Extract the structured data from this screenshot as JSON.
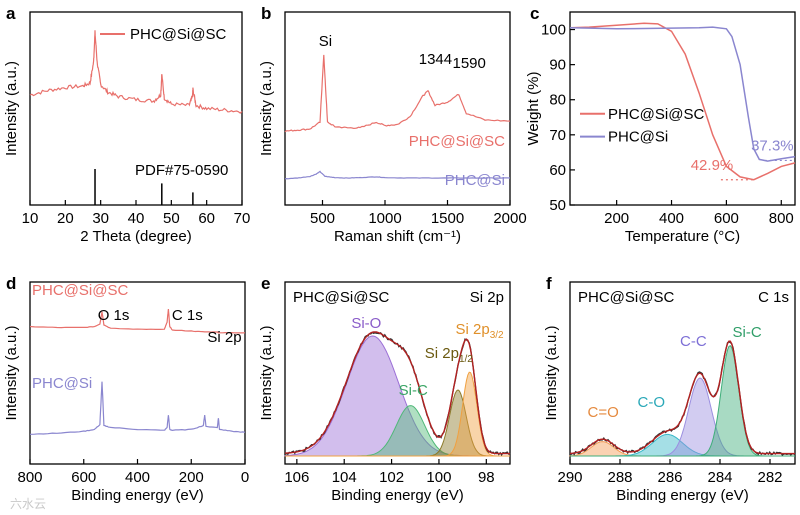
{
  "colors": {
    "red": "#e8706b",
    "purple": "#8a86cf",
    "black": "#000000"
  },
  "watermark": "六水云",
  "panels": {
    "a": {
      "letter": "a",
      "xlabel": "2 Theta (degree)",
      "ylabel": "Intensity (a.u.)",
      "xticks": [
        "10",
        "20",
        "30",
        "40",
        "50",
        "60",
        "70"
      ],
      "legend": "PHC@Si@SC",
      "reference": "PDF#75-0590"
    },
    "b": {
      "letter": "b",
      "xlabel": "Raman shift (cm⁻¹)",
      "ylabel": "Intensity (a.u.)",
      "xticks": [
        "500",
        "1000",
        "1500",
        "2000"
      ],
      "peak_si": "Si",
      "peak_1344": "1344",
      "peak_1590": "1590",
      "label_top": "PHC@Si@SC",
      "label_bottom": "PHC@Si"
    },
    "c": {
      "letter": "c",
      "xlabel": "Temperature (°C)",
      "ylabel": "Weight (%)",
      "xticks": [
        "200",
        "400",
        "600",
        "800"
      ],
      "yticks": [
        "50",
        "60",
        "70",
        "80",
        "90",
        "100"
      ],
      "legend_1": "PHC@Si@SC",
      "legend_2": "PHC@Si",
      "annot_red": "42.9%",
      "annot_purple": "37.3%"
    },
    "d": {
      "letter": "d",
      "xlabel": "Binding energy (eV)",
      "ylabel": "Intensity (a.u.)",
      "xticks": [
        "800",
        "600",
        "400",
        "200",
        "0"
      ],
      "label_top": "PHC@Si@SC",
      "label_bottom": "PHC@Si",
      "peak_o1s": "O 1s",
      "peak_c1s": "C 1s",
      "peak_si2p": "Si 2p"
    },
    "e": {
      "letter": "e",
      "xlabel": "Binding energy (eV)",
      "ylabel": "Intensity (a.u.)",
      "xticks": [
        "106",
        "104",
        "102",
        "100",
        "98"
      ],
      "sample": "PHC@Si@SC",
      "region": "Si 2p",
      "comp_sio": "Si-O",
      "comp_sic": "Si-C",
      "comp_2p12": "Si 2p",
      "comp_2p12_sub": "1/2",
      "comp_2p32": "Si 2p",
      "comp_2p32_sub": "3/2"
    },
    "f": {
      "letter": "f",
      "xlabel": "Binding energy (eV)",
      "ylabel": "Intensity (a.u.)",
      "xticks": [
        "290",
        "288",
        "286",
        "284",
        "282"
      ],
      "sample": "PHC@Si@SC",
      "region": "C 1s",
      "comp_co_double": "C=O",
      "comp_co": "C-O",
      "comp_cc": "C-C",
      "comp_sic": "Si-C"
    }
  },
  "chart_data": [
    {
      "type": "line",
      "title": "",
      "xlabel": "2 Theta (degree)",
      "ylabel": "Intensity (a.u.)",
      "xlim": [
        10,
        70
      ],
      "series": [
        {
          "name": "PHC@Si@SC",
          "x": [
            10,
            15,
            20,
            25,
            27,
            28,
            28.4,
            29,
            30,
            32,
            35,
            40,
            45,
            47,
            47.3,
            48,
            50,
            55,
            56,
            56.1,
            57,
            60,
            65,
            70
          ],
          "y": [
            0.58,
            0.61,
            0.63,
            0.64,
            0.66,
            0.8,
            1.0,
            0.8,
            0.65,
            0.6,
            0.57,
            0.55,
            0.54,
            0.58,
            0.72,
            0.56,
            0.52,
            0.51,
            0.57,
            0.62,
            0.51,
            0.49,
            0.48,
            0.47
          ]
        }
      ],
      "reference_lines": {
        "label": "PDF#75-0590",
        "x": [
          28.4,
          47.3,
          56.1
        ],
        "height": [
          1.0,
          0.6,
          0.35
        ]
      }
    },
    {
      "type": "line",
      "title": "",
      "xlabel": "Raman shift (cm⁻¹)",
      "ylabel": "Intensity (a.u.)",
      "xlim": [
        200,
        2000
      ],
      "series": [
        {
          "name": "PHC@Si@SC",
          "x": [
            200,
            300,
            400,
            480,
            510,
            540,
            600,
            700,
            800,
            930,
            1000,
            1100,
            1200,
            1300,
            1344,
            1400,
            1500,
            1590,
            1650,
            1800,
            2000
          ],
          "y": [
            0.32,
            0.33,
            0.34,
            0.4,
            1.0,
            0.4,
            0.36,
            0.35,
            0.35,
            0.4,
            0.37,
            0.38,
            0.45,
            0.63,
            0.68,
            0.55,
            0.58,
            0.65,
            0.48,
            0.42,
            0.41
          ]
        },
        {
          "name": "PHC@Si",
          "x": [
            200,
            300,
            400,
            450,
            480,
            520,
            600,
            700,
            800,
            930,
            1000,
            1200,
            1400,
            1600,
            1800,
            2000
          ],
          "y": [
            0.08,
            0.1,
            0.14,
            0.2,
            0.26,
            0.14,
            0.11,
            0.1,
            0.11,
            0.13,
            0.11,
            0.1,
            0.1,
            0.1,
            0.1,
            0.1
          ]
        }
      ]
    },
    {
      "type": "line",
      "title": "",
      "xlabel": "Temperature (°C)",
      "ylabel": "Weight (%)",
      "xlim": [
        30,
        850
      ],
      "ylim": [
        50,
        105
      ],
      "series": [
        {
          "name": "PHC@Si@SC",
          "x": [
            30,
            100,
            200,
            300,
            350,
            400,
            450,
            500,
            550,
            600,
            650,
            700,
            750,
            800,
            850
          ],
          "y": [
            100.5,
            100.7,
            101.2,
            101.8,
            101.6,
            99.5,
            93,
            82,
            70,
            61,
            58,
            57.2,
            59,
            61,
            62
          ]
        },
        {
          "name": "PHC@Si",
          "x": [
            30,
            100,
            200,
            300,
            400,
            500,
            550,
            600,
            620,
            650,
            680,
            700,
            720,
            750,
            800,
            850
          ],
          "y": [
            100.5,
            100.4,
            100.2,
            100.3,
            100.4,
            100.5,
            100.7,
            100.2,
            98,
            90,
            75,
            66,
            63,
            62.5,
            63.2,
            63.8
          ]
        }
      ],
      "annotations": [
        "42.9%",
        "37.3%"
      ]
    },
    {
      "type": "line",
      "title": "",
      "xlabel": "Binding energy (eV)",
      "ylabel": "Intensity (a.u.)",
      "xlim": [
        800,
        0
      ],
      "series": [
        {
          "name": "PHC@Si@SC",
          "x": [
            800,
            700,
            600,
            560,
            540,
            532,
            525,
            500,
            400,
            300,
            290,
            285,
            280,
            270,
            200,
            150,
            103,
            99,
            50,
            0
          ],
          "y": [
            0.8,
            0.79,
            0.79,
            0.8,
            0.83,
            0.97,
            0.82,
            0.78,
            0.77,
            0.77,
            0.85,
            1.0,
            0.8,
            0.76,
            0.75,
            0.74,
            0.74,
            0.73,
            0.73,
            0.73
          ]
        },
        {
          "name": "PHC@Si",
          "x": [
            800,
            700,
            600,
            560,
            540,
            532,
            525,
            500,
            400,
            300,
            290,
            285,
            280,
            270,
            200,
            155,
            150,
            145,
            103,
            99,
            95,
            50,
            0
          ],
          "y": [
            0.05,
            0.06,
            0.08,
            0.1,
            0.15,
            0.6,
            0.14,
            0.12,
            0.1,
            0.09,
            0.12,
            0.25,
            0.1,
            0.09,
            0.1,
            0.14,
            0.25,
            0.13,
            0.12,
            0.22,
            0.1,
            0.08,
            0.07
          ]
        }
      ]
    },
    {
      "type": "area",
      "title": "",
      "xlabel": "Binding energy (eV)",
      "ylabel": "Intensity (a.u.)",
      "xlim": [
        106.5,
        97
      ],
      "region": "Si 2p",
      "components": [
        {
          "name": "Si-O",
          "center": 102.8,
          "height": 1.0,
          "width": 1.1
        },
        {
          "name": "Si-C",
          "center": 101.2,
          "height": 0.42,
          "width": 0.6
        },
        {
          "name": "Si 2p1/2",
          "center": 99.2,
          "height": 0.55,
          "width": 0.35
        },
        {
          "name": "Si 2p3/2",
          "center": 98.7,
          "height": 0.7,
          "width": 0.3
        }
      ]
    },
    {
      "type": "area",
      "title": "",
      "xlabel": "Binding energy (eV)",
      "ylabel": "Intensity (a.u.)",
      "xlim": [
        290,
        281
      ],
      "region": "C 1s",
      "components": [
        {
          "name": "C=O",
          "center": 288.7,
          "height": 0.12,
          "width": 0.45
        },
        {
          "name": "C-O",
          "center": 286.1,
          "height": 0.18,
          "width": 0.6
        },
        {
          "name": "C-C",
          "center": 284.8,
          "height": 0.65,
          "width": 0.45
        },
        {
          "name": "Si-C",
          "center": 283.6,
          "height": 0.92,
          "width": 0.35
        }
      ]
    }
  ]
}
